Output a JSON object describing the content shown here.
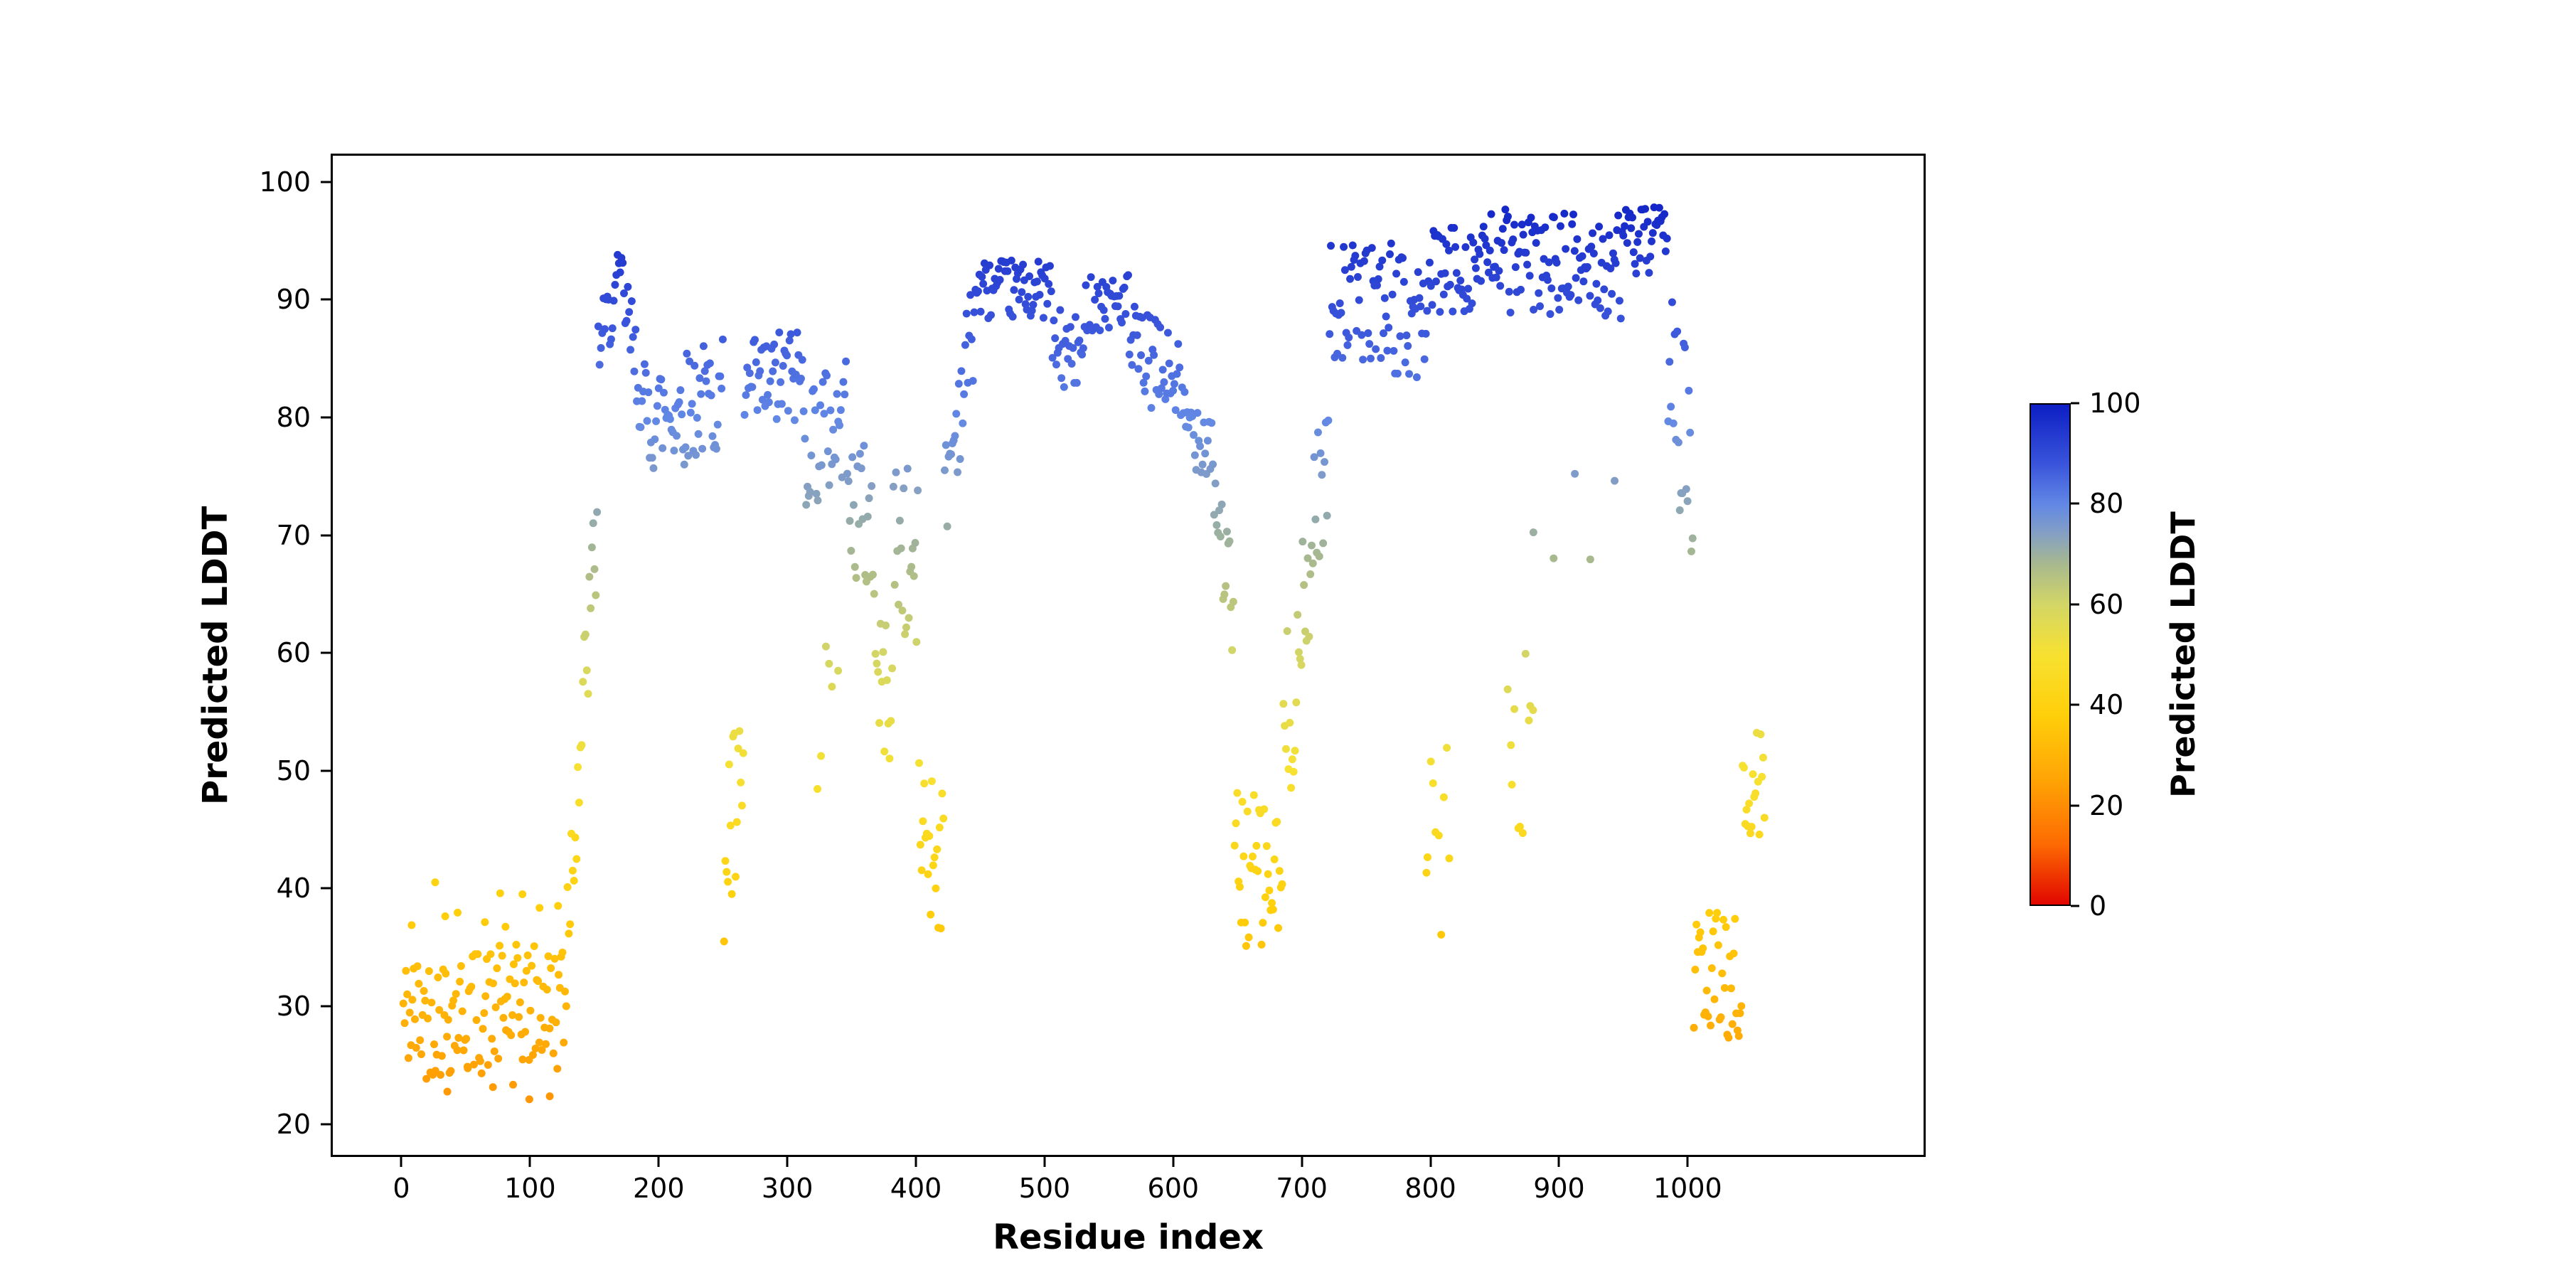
{
  "chart_data": {
    "type": "scatter",
    "title": "",
    "xlabel": "Residue index",
    "ylabel": "Predicted LDDT",
    "colorbar_label": "Predicted LDDT",
    "background": "#ffffff",
    "grid": false,
    "legend": "none (colorbar on right)",
    "xlim": [
      -55,
      1185
    ],
    "ylim": [
      17.2,
      102.4
    ],
    "x_ticks": [
      0,
      100,
      200,
      300,
      400,
      500,
      600,
      700,
      800,
      900,
      1000
    ],
    "y_ticks": [
      20,
      30,
      40,
      50,
      60,
      70,
      80,
      90,
      100
    ],
    "colorbar_ticks": [
      0,
      20,
      40,
      60,
      80,
      100
    ],
    "colorbar_range": [
      0,
      100
    ],
    "colormap_stops": [
      [
        0,
        "#e10600"
      ],
      [
        12,
        "#fd6a02"
      ],
      [
        25,
        "#ffa405"
      ],
      [
        38,
        "#ffcf0a"
      ],
      [
        50,
        "#f7e131"
      ],
      [
        60,
        "#d3d666"
      ],
      [
        68,
        "#a8b98e"
      ],
      [
        74,
        "#85a0c2"
      ],
      [
        80,
        "#6288e5"
      ],
      [
        88,
        "#3a55db"
      ],
      [
        100,
        "#0d1ec4"
      ]
    ],
    "marker": "circle",
    "point_radius": 5.5,
    "n_points_approx": 1060,
    "value_clamp": [
      21.2,
      99.4
    ],
    "seed": 42,
    "series_segments_format": "[x_start, x_end, y_mean_start, y_mean_end, y_spread, x_step] — per-residue pLDDT profile read from the plot; points are the mean trend plus uniform scatter of ±spread",
    "series_segments": [
      [
        0,
        128,
        29,
        30,
        5.5,
        1
      ],
      [
        6,
        122,
        39,
        39,
        3.5,
        12
      ],
      [
        30,
        112,
        23,
        23,
        2,
        16
      ],
      [
        128,
        152,
        38,
        72,
        6,
        1
      ],
      [
        152,
        170,
        86,
        92,
        3,
        1
      ],
      [
        170,
        186,
        91,
        82,
        4,
        1
      ],
      [
        186,
        250,
        80,
        82,
        5,
        1
      ],
      [
        250,
        266,
        44,
        46,
        9,
        1
      ],
      [
        266,
        312,
        82,
        84,
        4.5,
        1
      ],
      [
        312,
        348,
        78,
        80,
        6,
        1
      ],
      [
        322,
        340,
        54,
        56,
        6,
        3
      ],
      [
        348,
        368,
        73,
        70,
        7,
        1
      ],
      [
        368,
        382,
        58,
        56,
        6,
        1
      ],
      [
        382,
        402,
        70,
        66,
        8,
        1
      ],
      [
        402,
        422,
        46,
        42,
        7,
        1
      ],
      [
        422,
        446,
        74,
        89,
        5,
        1
      ],
      [
        446,
        506,
        91,
        91,
        2.5,
        1
      ],
      [
        506,
        532,
        86,
        85,
        3.5,
        1
      ],
      [
        532,
        566,
        90,
        90,
        2.5,
        1
      ],
      [
        566,
        606,
        86,
        83,
        4,
        1
      ],
      [
        606,
        632,
        80,
        78,
        3.5,
        1
      ],
      [
        632,
        648,
        74,
        62,
        5,
        1
      ],
      [
        648,
        686,
        42,
        40,
        7,
        1
      ],
      [
        686,
        708,
        52,
        66,
        8,
        1
      ],
      [
        708,
        722,
        72,
        76,
        6,
        1
      ],
      [
        722,
        772,
        90,
        90,
        5,
        1
      ],
      [
        772,
        798,
        89,
        88,
        5.5,
        1
      ],
      [
        796,
        816,
        50,
        42,
        11,
        2
      ],
      [
        798,
        862,
        92,
        94,
        4,
        1
      ],
      [
        860,
        882,
        55,
        48,
        10,
        2
      ],
      [
        862,
        952,
        93,
        93,
        4.5,
        1
      ],
      [
        880,
        950,
        70,
        74,
        6,
        14
      ],
      [
        952,
        986,
        95,
        95,
        3,
        1
      ],
      [
        986,
        1006,
        88,
        72,
        9,
        1
      ],
      [
        1006,
        1044,
        32,
        33,
        6,
        1
      ],
      [
        1044,
        1062,
        46,
        50,
        5,
        1
      ]
    ]
  }
}
